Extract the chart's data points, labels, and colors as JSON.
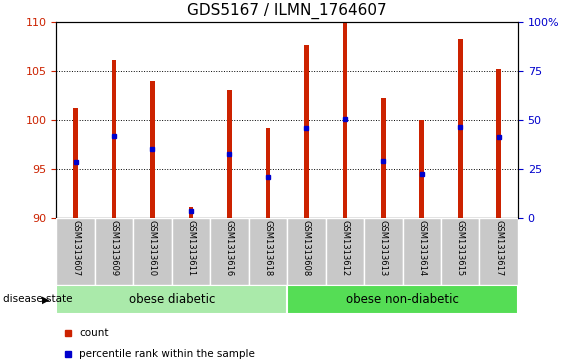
{
  "title": "GDS5167 / ILMN_1764607",
  "samples": [
    "GSM1313607",
    "GSM1313609",
    "GSM1313610",
    "GSM1313611",
    "GSM1313616",
    "GSM1313618",
    "GSM1313608",
    "GSM1313612",
    "GSM1313613",
    "GSM1313614",
    "GSM1313615",
    "GSM1313617"
  ],
  "bar_tops": [
    101.2,
    106.1,
    104.0,
    91.1,
    103.0,
    99.2,
    107.6,
    110.0,
    102.2,
    100.0,
    108.2,
    105.2
  ],
  "bar_base": 90,
  "percentile_values": [
    95.7,
    98.3,
    97.0,
    90.7,
    96.5,
    94.2,
    99.2,
    100.1,
    95.8,
    94.5,
    99.3,
    98.2
  ],
  "bar_color": "#cc2200",
  "percentile_color": "#0000cc",
  "ylim_left": [
    90,
    110
  ],
  "ylim_right": [
    0,
    100
  ],
  "yticks_left": [
    90,
    95,
    100,
    105,
    110
  ],
  "yticks_right": [
    0,
    25,
    50,
    75,
    100
  ],
  "group1_label": "obese diabetic",
  "group2_label": "obese non-diabetic",
  "group1_count": 6,
  "group2_count": 6,
  "disease_state_label": "disease state",
  "group_color1": "#aaeaaa",
  "group_color2": "#55dd55",
  "ticklabel_bg": "#c8c8c8",
  "title_fontsize": 11,
  "bar_width": 0.12,
  "legend_count_label": "count",
  "legend_pct_label": "percentile rank within the sample"
}
